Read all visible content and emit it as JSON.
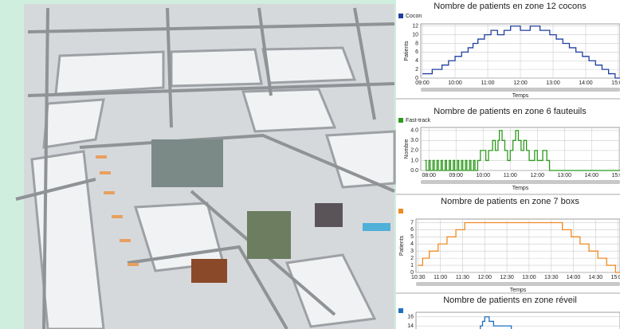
{
  "chart_data": [
    {
      "type": "line",
      "step": true,
      "title": "Nombre de patients en zone 12 cocons",
      "y_label": "Patients",
      "x_label": "Temps",
      "xlim": [
        8.95,
        15.05
      ],
      "ylim": [
        0,
        12.5
      ],
      "xticks": [
        {
          "value": 9,
          "label": "09:00"
        },
        {
          "value": 10,
          "label": "10:00"
        },
        {
          "value": 11,
          "label": "11:00"
        },
        {
          "value": 12,
          "label": "12:00"
        },
        {
          "value": 13,
          "label": "13:00"
        },
        {
          "value": 14,
          "label": "14:00"
        },
        {
          "value": 15,
          "label": "15:00"
        }
      ],
      "yticks": [
        0,
        2,
        4,
        6,
        8,
        10,
        12
      ],
      "grid": true,
      "series": [
        {
          "name": "Cocon",
          "color": "#1f3f9f",
          "x": [
            9.0,
            9.3,
            9.6,
            9.8,
            10.0,
            10.2,
            10.4,
            10.55,
            10.7,
            10.9,
            11.1,
            11.3,
            11.5,
            11.7,
            12.0,
            12.3,
            12.6,
            12.9,
            13.1,
            13.3,
            13.5,
            13.7,
            13.9,
            14.1,
            14.3,
            14.5,
            14.7,
            14.9
          ],
          "values": [
            1,
            2,
            3,
            4,
            5,
            6,
            7,
            8,
            9,
            10,
            11,
            10,
            11,
            12,
            11,
            12,
            11,
            10,
            9,
            8,
            7,
            6,
            5,
            4,
            3,
            2,
            1,
            0
          ]
        }
      ]
    },
    {
      "type": "line",
      "step": true,
      "title": "Nombre de patients en zone 6 fauteuils",
      "y_label": "Nombre",
      "x_label": "Temps",
      "xlim": [
        7.7,
        15.05
      ],
      "ylim": [
        0,
        4.3
      ],
      "xticks": [
        {
          "value": 8,
          "label": "08:00"
        },
        {
          "value": 9,
          "label": "09:00"
        },
        {
          "value": 10,
          "label": "10:00"
        },
        {
          "value": 11,
          "label": "11:00"
        },
        {
          "value": 12,
          "label": "12:00"
        },
        {
          "value": 13,
          "label": "13:00"
        },
        {
          "value": 14,
          "label": "14:00"
        },
        {
          "value": 15,
          "label": "15:00"
        }
      ],
      "yticks": [
        {
          "value": 0,
          "label": "0.0"
        },
        {
          "value": 1,
          "label": "1.0"
        },
        {
          "value": 2,
          "label": "2.0"
        },
        {
          "value": 3,
          "label": "3.0"
        },
        {
          "value": 4,
          "label": "4.0"
        }
      ],
      "grid": true,
      "series": [
        {
          "name": "Fast-track",
          "color": "#2e9a1e",
          "x": [
            7.85,
            7.9,
            8.0,
            8.05,
            8.15,
            8.2,
            8.3,
            8.35,
            8.45,
            8.5,
            8.6,
            8.65,
            8.75,
            8.8,
            8.9,
            8.95,
            9.05,
            9.1,
            9.2,
            9.25,
            9.35,
            9.4,
            9.5,
            9.55,
            9.65,
            9.7,
            9.8,
            9.9,
            10.1,
            10.2,
            10.35,
            10.45,
            10.55,
            10.6,
            10.7,
            10.8,
            10.9,
            11.0,
            11.1,
            11.2,
            11.3,
            11.4,
            11.5,
            11.6,
            11.7,
            11.9,
            12.0,
            12.2,
            12.35,
            12.45
          ],
          "values": [
            1,
            0,
            1,
            0,
            1,
            0,
            1,
            0,
            1,
            0,
            1,
            0,
            1,
            0,
            1,
            0,
            1,
            0,
            1,
            0,
            1,
            0,
            1,
            0,
            1,
            0,
            1,
            2,
            1,
            2,
            3,
            2,
            3,
            4,
            3,
            2,
            1,
            2,
            3,
            4,
            3,
            2,
            3,
            2,
            1,
            2,
            1,
            2,
            1,
            0
          ]
        }
      ]
    },
    {
      "type": "line",
      "step": true,
      "title": "Nombre de patients en zone 7 boxs",
      "y_label": "Patients",
      "x_label": "Temps",
      "xlim": [
        10.45,
        15.05
      ],
      "ylim": [
        0,
        7.5
      ],
      "xticks": [
        {
          "value": 10.5,
          "label": "10:30"
        },
        {
          "value": 11,
          "label": "11:00"
        },
        {
          "value": 11.5,
          "label": "11:30"
        },
        {
          "value": 12,
          "label": "12:00"
        },
        {
          "value": 12.5,
          "label": "12:30"
        },
        {
          "value": 13,
          "label": "13:00"
        },
        {
          "value": 13.5,
          "label": "13:30"
        },
        {
          "value": 14,
          "label": "14:00"
        },
        {
          "value": 14.5,
          "label": "14:30"
        },
        {
          "value": 15,
          "label": "15:00"
        }
      ],
      "yticks": [
        0,
        1,
        2,
        3,
        4,
        5,
        6,
        7
      ],
      "grid": true,
      "series": [
        {
          "color": "#f08a24",
          "x": [
            10.5,
            10.6,
            10.75,
            10.95,
            11.15,
            11.35,
            11.55,
            13.75,
            13.95,
            14.15,
            14.35,
            14.55,
            14.75,
            14.95
          ],
          "values": [
            1,
            2,
            3,
            4,
            5,
            6,
            7,
            6,
            5,
            4,
            3,
            2,
            1,
            0
          ]
        }
      ]
    },
    {
      "type": "line",
      "step": true,
      "title": "Nombre de patients en zone réveil",
      "xlim": [
        10.45,
        15.05
      ],
      "ylim": [
        10,
        17
      ],
      "yticks": [
        14,
        16
      ],
      "grid": true,
      "series": [
        {
          "color": "#1f6fbf",
          "x": [
            11.5,
            11.9,
            11.95,
            12.0,
            12.05,
            12.1,
            12.2,
            12.6
          ],
          "values": [
            13,
            14,
            15,
            16,
            16,
            15,
            14,
            13
          ]
        }
      ]
    }
  ]
}
